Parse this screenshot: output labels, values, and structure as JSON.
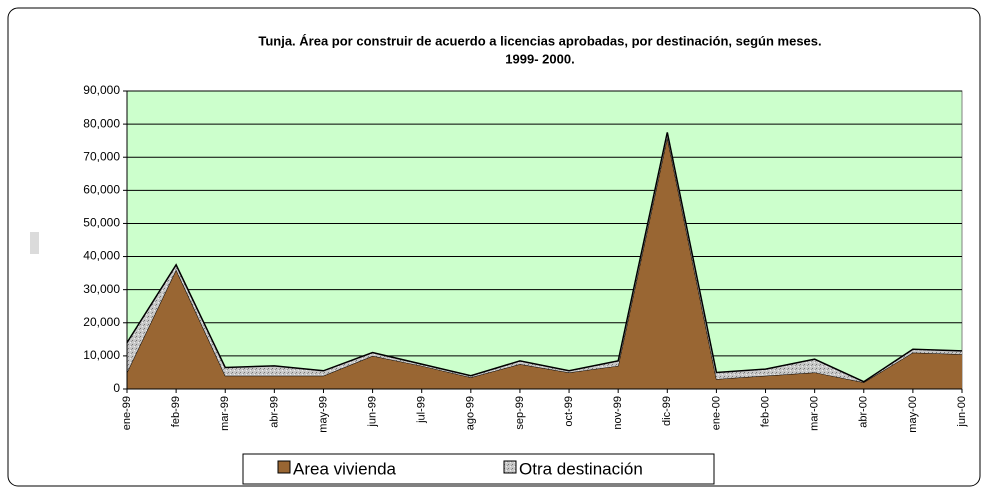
{
  "chart_data": {
    "type": "stacked_area",
    "title": [
      "Tunja. Área por construir de acuerdo a licencias aprobadas, por destinación, según meses.",
      "1999- 2000."
    ],
    "categories": [
      "ene-99",
      "feb-99",
      "mar-99",
      "abr-99",
      "may-99",
      "jun-99",
      "jul-99",
      "ago-99",
      "sep-99",
      "oct-99",
      "nov-99",
      "dic-99",
      "ene-00",
      "feb-00",
      "mar-00",
      "abr-00",
      "may-00",
      "jun-00"
    ],
    "series": [
      {
        "name": "Area vivienda",
        "color": "#996633",
        "values": [
          5000,
          36000,
          4000,
          4000,
          4000,
          10000,
          7000,
          3500,
          7500,
          5000,
          7000,
          76000,
          3000,
          4000,
          5000,
          2000,
          11000,
          10500
        ]
      },
      {
        "name": "Otra destinación",
        "color": "#b8b8b8",
        "values": [
          9000,
          1500,
          2500,
          3000,
          1500,
          1000,
          500,
          500,
          1000,
          500,
          1500,
          1500,
          2000,
          2000,
          4000,
          200,
          1000,
          1000
        ]
      }
    ],
    "ylim": [
      0,
      90000
    ],
    "yticks": [
      0,
      {
        "value": 10000,
        "label": "10,000"
      },
      {
        "value": 20000,
        "label": "20,000"
      },
      {
        "value": 30000,
        "label": "30,000"
      },
      {
        "value": 40000,
        "label": "40,000"
      },
      {
        "value": 50000,
        "label": "50,000"
      },
      {
        "value": 60000,
        "label": "60,000"
      },
      {
        "value": 70000,
        "label": "70,000"
      },
      {
        "value": 80000,
        "label": "80,000"
      },
      {
        "value": 90000,
        "label": "90,000"
      }
    ],
    "grid": true,
    "plot_background": "#ccffcc",
    "legend": "bottom"
  }
}
